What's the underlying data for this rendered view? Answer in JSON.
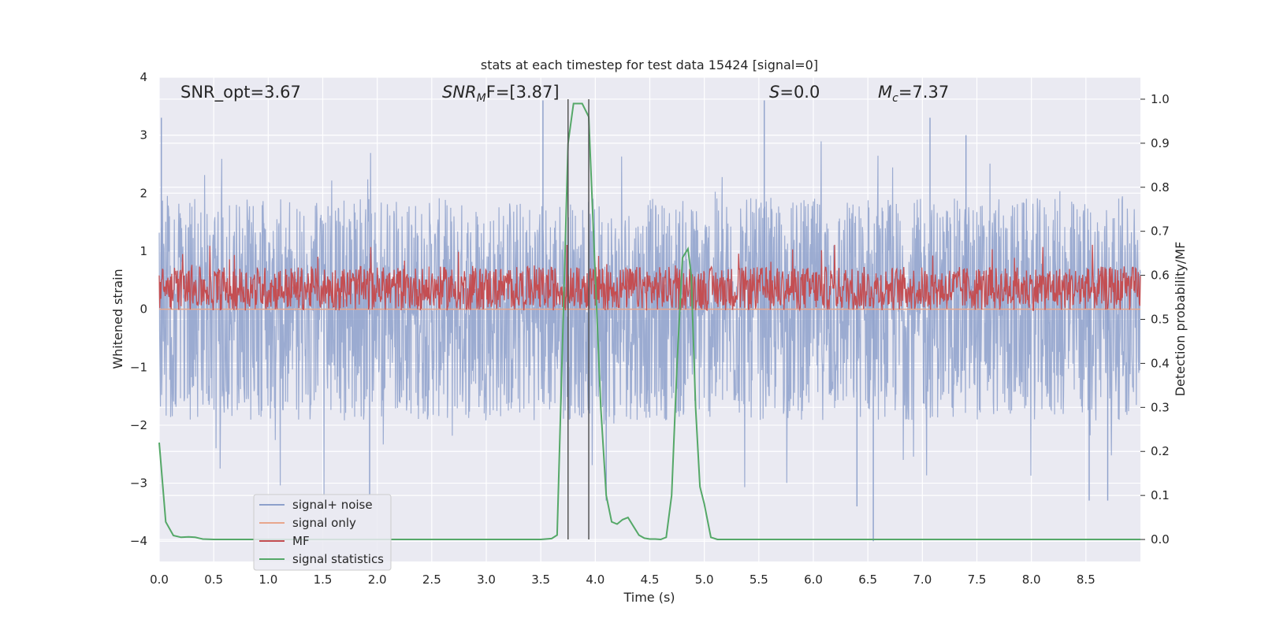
{
  "chart_data": {
    "type": "line",
    "title": "stats at each timestep for test data 15424 [signal=0]",
    "xlabel": "Time (s)",
    "ylabel": "Whitened strain",
    "ylabel_right": "Detection probability/MF",
    "xlim": [
      0.0,
      9.0
    ],
    "ylim": [
      -4.35,
      4.0
    ],
    "ylim_right": [
      -0.05,
      1.05
    ],
    "x_ticks": [
      "0.0",
      "0.5",
      "1.0",
      "1.5",
      "2.0",
      "2.5",
      "3.0",
      "3.5",
      "4.0",
      "4.5",
      "5.0",
      "5.5",
      "6.0",
      "6.5",
      "7.0",
      "7.5",
      "8.0",
      "8.5"
    ],
    "y_ticks": [
      "4",
      "3",
      "2",
      "1",
      "0",
      "−1",
      "−2",
      "−3",
      "−4"
    ],
    "y_ticks_right": [
      "1.0",
      "0.9",
      "0.8",
      "0.7",
      "0.6",
      "0.5",
      "0.4",
      "0.3",
      "0.2",
      "0.1",
      "0.0"
    ],
    "annotations": {
      "snr_opt": "SNR_opt=3.67",
      "snr_mf_base": "SNR",
      "snr_mf_sub": "M",
      "snr_mf_rest": "F=[3.87]",
      "s_base": "S",
      "s_rest": "=0.0",
      "mc_base": "M",
      "mc_sub": "c",
      "mc_rest": "=7.37"
    },
    "vlines_x": [
      3.75,
      3.94
    ],
    "grid": true,
    "legend_position": "lower-left",
    "series": [
      {
        "name": "signal+ noise",
        "color": "#8da0cb",
        "description": "noise envelope",
        "envelope_y": [
          -2.4,
          2.4
        ],
        "peaks_y": [
          3.3,
          -3.2,
          3.6,
          -3.3,
          3.6,
          -3.4,
          -4.0,
          3.3,
          3.0,
          -3.3,
          -3.3
        ]
      },
      {
        "name": "signal only",
        "color": "#e8a68c",
        "x": [
          0.0,
          9.0
        ],
        "y": [
          0.0,
          0.0
        ]
      },
      {
        "name": "MF",
        "color": "#c44e52",
        "axis": "right",
        "band": [
          0.52,
          0.62
        ],
        "spike_max": 0.67
      },
      {
        "name": "signal statistics",
        "color": "#55a868",
        "axis": "right",
        "x": [
          0.0,
          0.06,
          0.13,
          0.2,
          0.27,
          0.33,
          0.4,
          0.5,
          0.6,
          1.0,
          2.0,
          3.0,
          3.5,
          3.6,
          3.65,
          3.7,
          3.75,
          3.8,
          3.88,
          3.94,
          4.0,
          4.05,
          4.1,
          4.15,
          4.2,
          4.25,
          4.3,
          4.35,
          4.4,
          4.45,
          4.5,
          4.55,
          4.6,
          4.65,
          4.7,
          4.75,
          4.8,
          4.85,
          4.88,
          4.92,
          4.96,
          5.0,
          5.06,
          5.12,
          5.2,
          6.0,
          7.0,
          8.0,
          9.0
        ],
        "y": [
          0.22,
          0.04,
          0.009,
          0.005,
          0.006,
          0.005,
          0.001,
          0.0,
          0.0,
          0.0,
          0.0,
          0.0,
          0.0,
          0.002,
          0.01,
          0.45,
          0.9,
          0.99,
          0.99,
          0.96,
          0.6,
          0.3,
          0.1,
          0.04,
          0.035,
          0.045,
          0.05,
          0.03,
          0.01,
          0.003,
          0.001,
          0.001,
          0.0,
          0.005,
          0.1,
          0.4,
          0.64,
          0.66,
          0.6,
          0.3,
          0.12,
          0.08,
          0.005,
          0.0,
          0.0,
          0.0,
          0.0,
          0.0,
          0.0
        ]
      }
    ]
  },
  "legend": {
    "items": [
      {
        "label": "signal+ noise",
        "color": "#8da0cb"
      },
      {
        "label": "signal only",
        "color": "#e8a68c"
      },
      {
        "label": "MF",
        "color": "#c44e52"
      },
      {
        "label": "signal statistics",
        "color": "#55a868"
      }
    ]
  }
}
